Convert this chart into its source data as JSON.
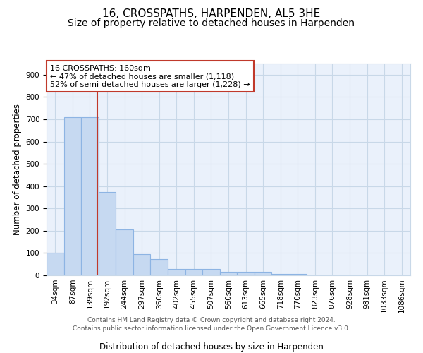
{
  "title": "16, CROSSPATHS, HARPENDEN, AL5 3HE",
  "subtitle": "Size of property relative to detached houses in Harpenden",
  "xlabel": "Distribution of detached houses by size in Harpenden",
  "ylabel": "Number of detached properties",
  "footer_line1": "Contains HM Land Registry data © Crown copyright and database right 2024.",
  "footer_line2": "Contains public sector information licensed under the Open Government Licence v3.0.",
  "annotation_line1": "16 CROSSPATHS: 160sqm",
  "annotation_line2": "← 47% of detached houses are smaller (1,118)",
  "annotation_line3": "52% of semi-detached houses are larger (1,228) →",
  "bar_labels": [
    "34sqm",
    "87sqm",
    "139sqm",
    "192sqm",
    "244sqm",
    "297sqm",
    "350sqm",
    "402sqm",
    "455sqm",
    "507sqm",
    "560sqm",
    "613sqm",
    "665sqm",
    "718sqm",
    "770sqm",
    "823sqm",
    "876sqm",
    "928sqm",
    "981sqm",
    "1033sqm",
    "1086sqm"
  ],
  "bar_values": [
    100,
    710,
    710,
    375,
    207,
    95,
    72,
    28,
    30,
    30,
    15,
    17,
    17,
    5,
    5,
    0,
    0,
    0,
    0,
    0,
    0
  ],
  "bar_color": "#c6d9f1",
  "bar_edge_color": "#8db4e3",
  "vline_x_index": 2.45,
  "vline_color": "#c0392b",
  "ylim": [
    0,
    950
  ],
  "yticks": [
    0,
    100,
    200,
    300,
    400,
    500,
    600,
    700,
    800,
    900
  ],
  "background_color": "#ffffff",
  "grid_color": "#c8d8e8",
  "title_fontsize": 11,
  "subtitle_fontsize": 10,
  "axis_label_fontsize": 8.5,
  "tick_fontsize": 7.5,
  "annotation_fontsize": 8
}
